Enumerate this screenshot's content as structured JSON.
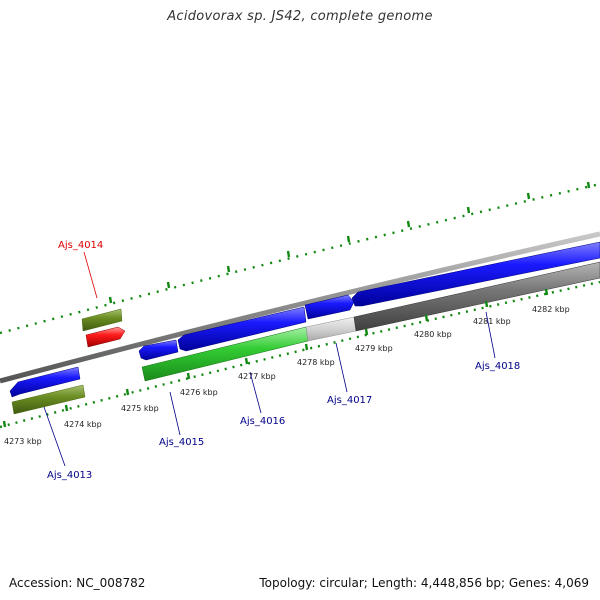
{
  "title": "Acidovorax sp. JS42, complete genome",
  "footer": {
    "accession": "Accession: NC_008782",
    "summary": "Topology: circular; Length: 4,448,856 bp; Genes: 4,069"
  },
  "ticks": [
    "4273 kbp",
    "4274 kbp",
    "4275 kbp",
    "4276 kbp",
    "4277 kbp",
    "4278 kbp",
    "4279 kbp",
    "4280 kbp",
    "4281 kbp",
    "4282 kbp"
  ],
  "genes": [
    {
      "label": "Ajs_4013",
      "color": "#0000cc"
    },
    {
      "label": "Ajs_4014",
      "color": "#dd0000"
    },
    {
      "label": "Ajs_4015",
      "color": "#0000cc"
    },
    {
      "label": "Ajs_4016",
      "color": "#0000cc"
    },
    {
      "label": "Ajs_4017",
      "color": "#0000cc"
    },
    {
      "label": "Ajs_4018",
      "color": "#0000cc"
    }
  ]
}
